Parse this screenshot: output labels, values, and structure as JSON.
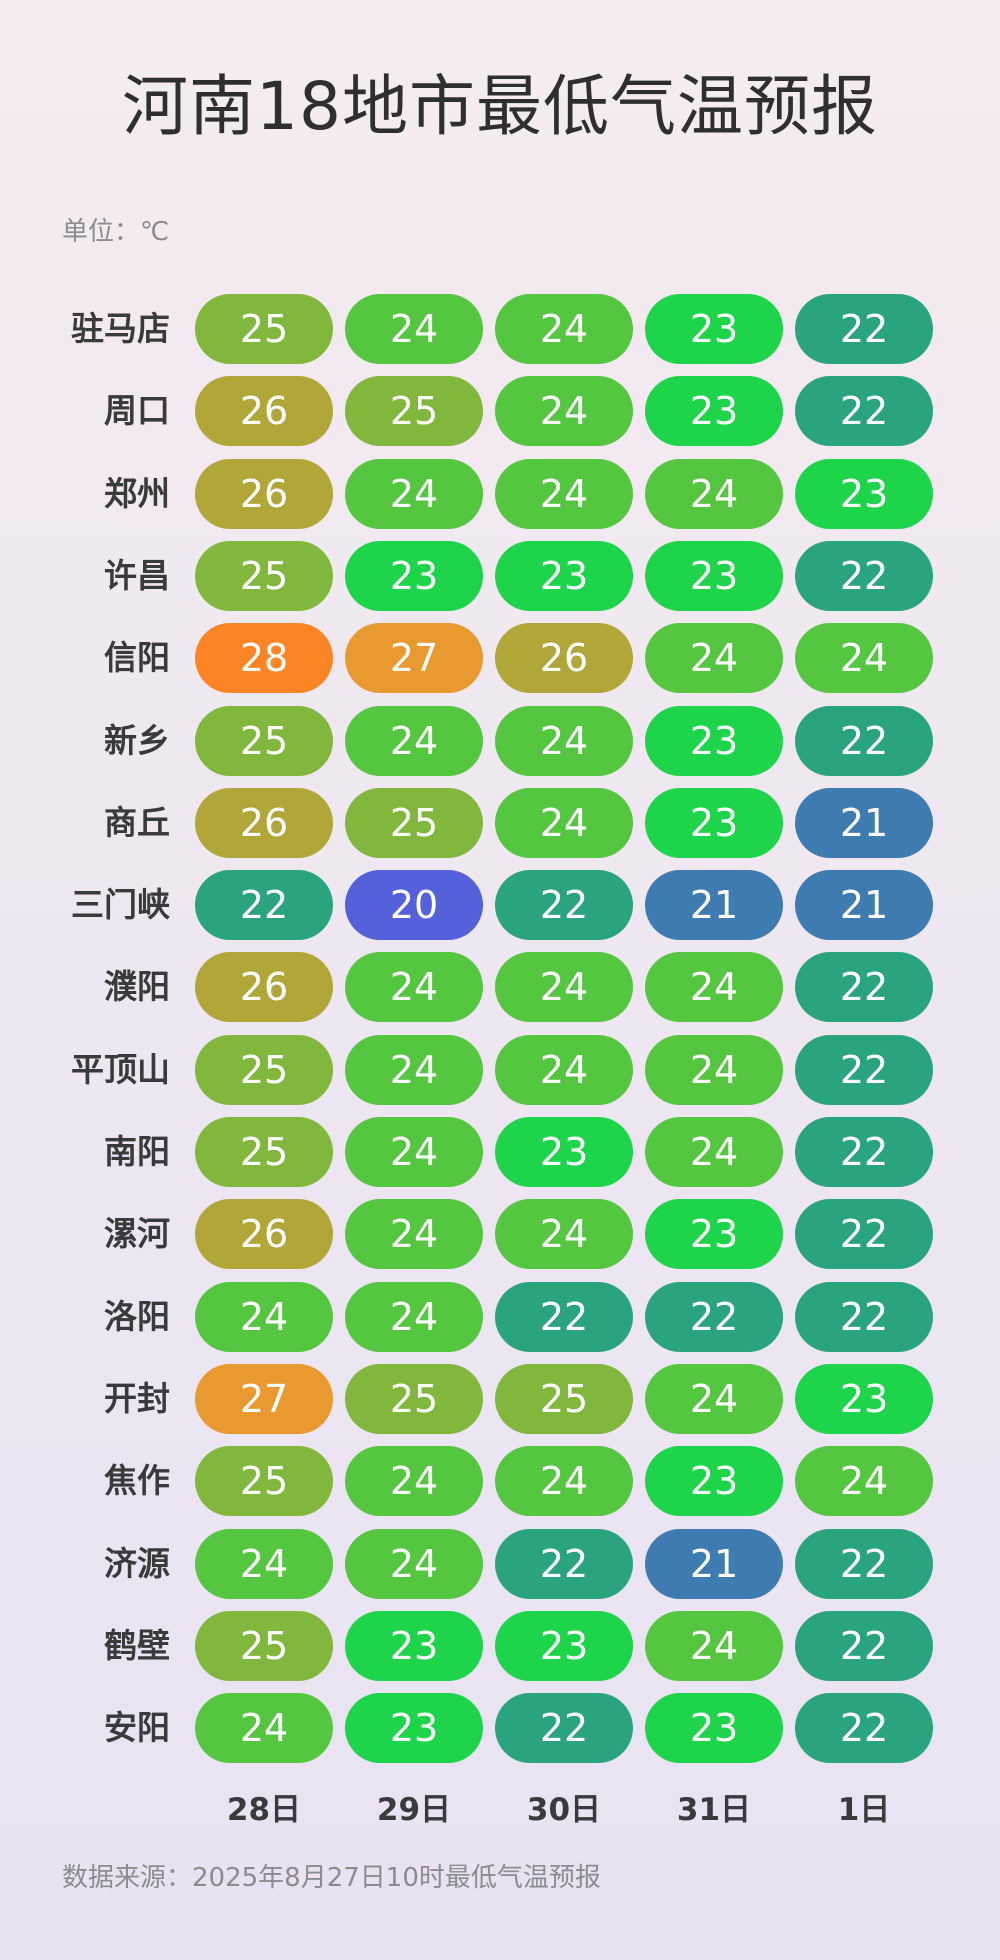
{
  "title": "河南18地市最低气温预报",
  "unit_label": "单位：℃",
  "source": "数据来源：2025年8月27日10时最低气温预报",
  "chart_data": {
    "type": "heatmap",
    "title": "河南18地市最低气温预报",
    "unit": "℃",
    "columns": [
      "28日",
      "29日",
      "30日",
      "31日",
      "1日"
    ],
    "rows": [
      "驻马店",
      "周口",
      "郑州",
      "许昌",
      "信阳",
      "新乡",
      "商丘",
      "三门峡",
      "濮阳",
      "平顶山",
      "南阳",
      "漯河",
      "洛阳",
      "开封",
      "焦作",
      "济源",
      "鹤壁",
      "安阳"
    ],
    "values": [
      [
        25,
        24,
        24,
        23,
        22
      ],
      [
        26,
        25,
        24,
        23,
        22
      ],
      [
        26,
        24,
        24,
        24,
        23
      ],
      [
        25,
        23,
        23,
        23,
        22
      ],
      [
        28,
        27,
        26,
        24,
        24
      ],
      [
        25,
        24,
        24,
        23,
        22
      ],
      [
        26,
        25,
        24,
        23,
        21
      ],
      [
        22,
        20,
        22,
        21,
        21
      ],
      [
        26,
        24,
        24,
        24,
        22
      ],
      [
        25,
        24,
        24,
        24,
        22
      ],
      [
        25,
        24,
        23,
        24,
        22
      ],
      [
        26,
        24,
        24,
        23,
        22
      ],
      [
        24,
        24,
        22,
        22,
        22
      ],
      [
        27,
        25,
        25,
        24,
        23
      ],
      [
        25,
        24,
        24,
        23,
        24
      ],
      [
        24,
        24,
        22,
        21,
        22
      ],
      [
        25,
        23,
        23,
        24,
        22
      ],
      [
        24,
        23,
        22,
        23,
        22
      ]
    ],
    "color_scale": {
      "20": "#5560db",
      "21": "#3d7bb0",
      "22": "#2aa47e",
      "23": "#1ed44b",
      "24": "#54c640",
      "25": "#80b73c",
      "26": "#b1a638",
      "27": "#e8992f",
      "28": "#fb8424"
    }
  }
}
